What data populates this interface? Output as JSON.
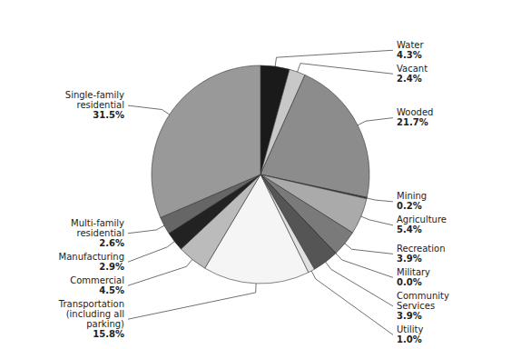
{
  "chart_data": {
    "type": "pie",
    "categories": [
      "Water",
      "Vacant",
      "Wooded",
      "Mining",
      "Agriculture",
      "Recreation",
      "Military",
      "Community\nServices",
      "Utility",
      "Transportation\n(including all\nparking)",
      "Commercial",
      "Manufacturing",
      "Multi-family\nresidential",
      "Single-family\nresidential"
    ],
    "values": [
      4.3,
      2.4,
      21.7,
      0.2,
      5.4,
      3.9,
      0.0,
      3.9,
      1.0,
      15.8,
      4.5,
      2.9,
      2.6,
      31.5
    ],
    "value_labels": [
      "4.3%",
      "2.4%",
      "21.7%",
      "0.2%",
      "5.4%",
      "3.9%",
      "0.0%",
      "3.9%",
      "1.0%",
      "15.8%",
      "4.5%",
      "2.9%",
      "2.6%",
      "31.5%"
    ],
    "colors": [
      "#1a1a1a",
      "#c8c8c8",
      "#8c8c8c",
      "#3a3a3a",
      "#aaaaaa",
      "#7a7a7a",
      "#111111",
      "#555555",
      "#e0e0e0",
      "#f5f5f5",
      "#bbbbbb",
      "#222222",
      "#666666",
      "#999999"
    ],
    "data_labels": true
  }
}
